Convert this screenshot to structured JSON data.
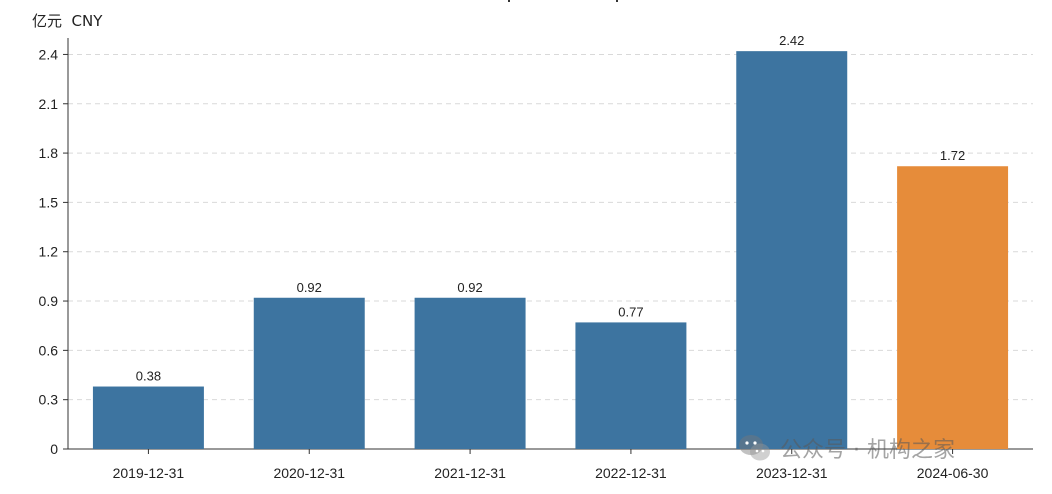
{
  "chart_data": {
    "type": "bar",
    "unit_label": "亿元  CNY",
    "categories": [
      "2019-12-31",
      "2020-12-31",
      "2021-12-31",
      "2022-12-31",
      "2023-12-31",
      "2024-06-30"
    ],
    "values": [
      0.38,
      0.92,
      0.92,
      0.77,
      2.42,
      1.72
    ],
    "data_labels": [
      "0.38",
      "0.92",
      "0.92",
      "0.77",
      "2.42",
      "1.72"
    ],
    "bar_colors": [
      "#3d74a0",
      "#3d74a0",
      "#3d74a0",
      "#3d74a0",
      "#3d74a0",
      "#e68c3a"
    ],
    "yticks": [
      0,
      0.3,
      0.6,
      0.9,
      1.2,
      1.5,
      1.8,
      2.1,
      2.4
    ],
    "ytick_labels": [
      "0",
      "0.3",
      "0.6",
      "0.9",
      "1.2",
      "1.5",
      "1.8",
      "2.1",
      "2.4"
    ],
    "ylim": [
      0,
      2.5
    ],
    "grid": "horizontal dashed",
    "colors": {
      "bar": "#3d74a0",
      "bar_highlight": "#e68c3a",
      "grid": "#d9d9d9",
      "axis": "#333333",
      "text": "#222222"
    }
  },
  "watermark": {
    "text": "公众号 · 机构之家",
    "icon": "wechat-icon"
  }
}
